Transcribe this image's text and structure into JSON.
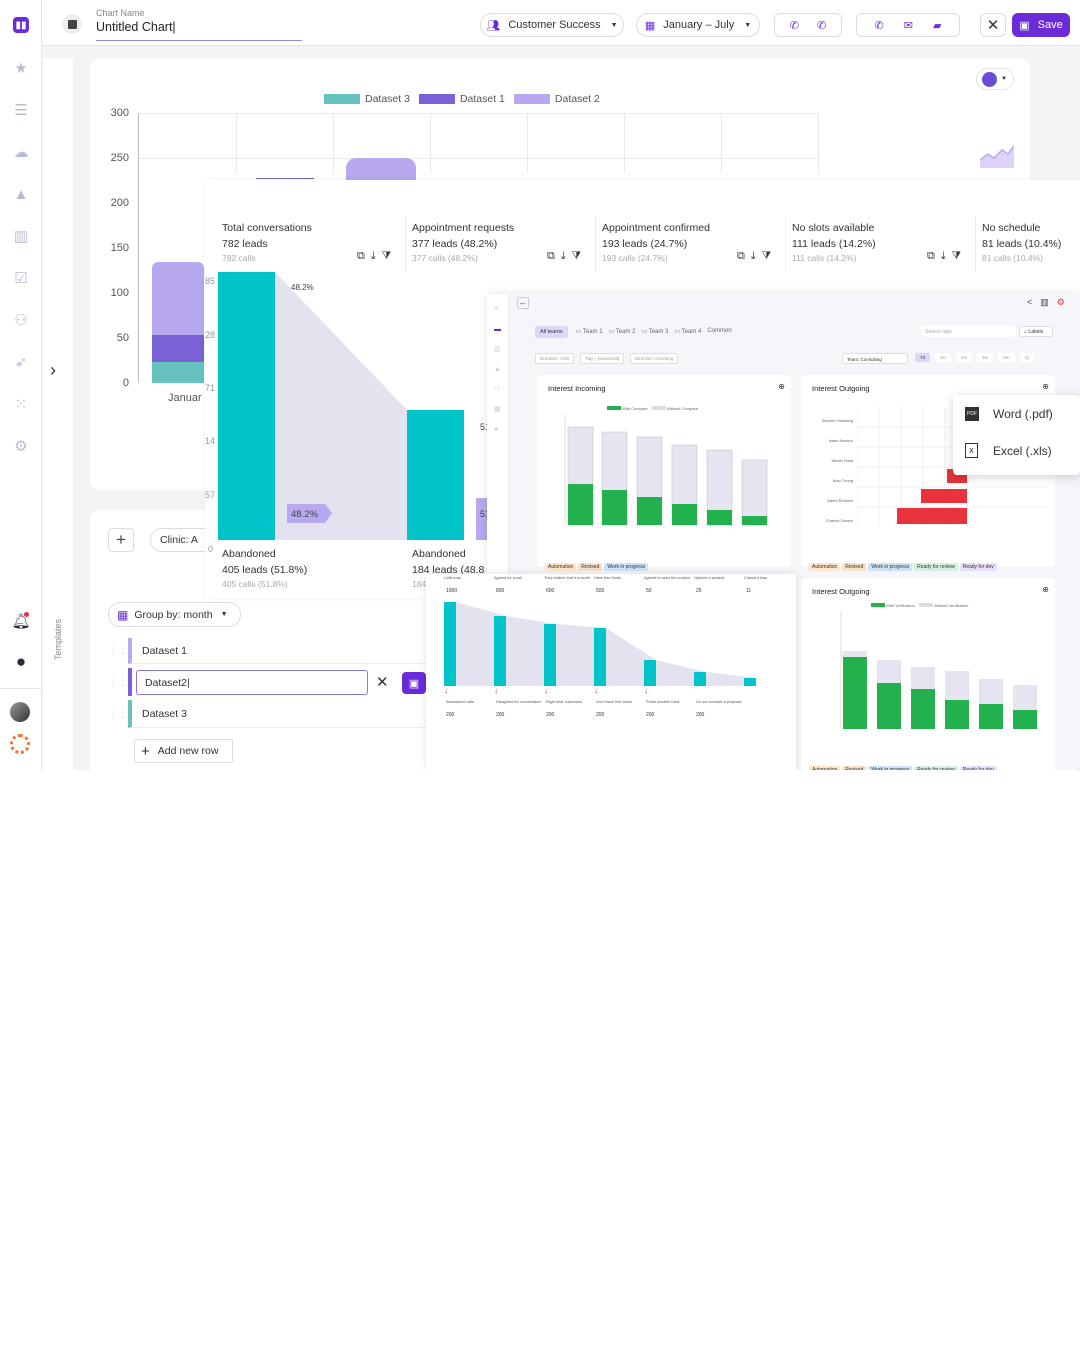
{
  "header": {
    "chart_name_label": "Chart Name",
    "chart_name_value": "Untitled Chart|",
    "team_select": "Customer Success",
    "date_range": "January – July",
    "save_label": "Save"
  },
  "colors": {
    "accent": "#6c2bd9",
    "teal": "#00c4c9",
    "dataset1": "#7a62d6",
    "dataset2": "#b7a8f0",
    "dataset3": "#66c2bd",
    "green": "#22b14c",
    "red": "#e8323c"
  },
  "bar_chart": {
    "legend": [
      "Dataset 3",
      "Dataset 1",
      "Dataset 2"
    ],
    "y_ticks": [
      "300",
      "250",
      "200",
      "150",
      "100",
      "50",
      "0"
    ],
    "x_label": "Januar"
  },
  "funnel": {
    "stats": [
      {
        "title": "Total conversations",
        "value": "782 leads",
        "sub": "782 calls"
      },
      {
        "title": "Appointment requests",
        "value": "377 leads (48.2%)",
        "sub": "377 calls (48.2%)"
      },
      {
        "title": "Appointment confirmed",
        "value": "193 leads (24.7%)",
        "sub": "193 calls (24.7%)"
      },
      {
        "title": "No slots available",
        "value": "111 leads (14.2%)",
        "sub": "111 calls (14.2%)"
      },
      {
        "title": "No schedule",
        "value": "81 leads (10.4%)",
        "sub": "81 calls (10.4%)"
      }
    ],
    "pct_top": "48.2%",
    "pct_bottom": "48.2%",
    "partial_label": "51",
    "side_ticks": [
      "85",
      "28",
      "71",
      "14",
      "57",
      "0"
    ],
    "abandoned": [
      {
        "title": "Abandoned",
        "value": "405 leads (51.8%)",
        "sub": "405 calls (51.8%)"
      },
      {
        "title": "Abandoned",
        "value": "184 leads (48.8",
        "sub": "184"
      }
    ]
  },
  "controls": {
    "clinic": "Clinic: A",
    "group_by": "Group by: month",
    "rows": [
      "Dataset 1",
      "Dataset2|",
      "Dataset 3"
    ],
    "add_row": "Add new row"
  },
  "export_menu": {
    "word": "Word (.pdf)",
    "excel": "Excel (.xls)",
    "pdf_badge": "PDF"
  },
  "dashboard": {
    "tabs": [
      "All teams",
      "Team 1",
      "Team 2",
      "Team 3",
      "Team 4",
      "Common"
    ],
    "search_placeholder": "Search tags",
    "labels_btn": "Labels",
    "filters": [
      "Duration: >20s",
      "Tag = [voicemail]",
      "Direction: incoming"
    ],
    "team_filter": "Team: Consulting",
    "ranges": [
      "7d",
      "2w",
      "1m",
      "3m",
      "6m",
      "1y"
    ],
    "panel1_title": "Interest Incoming",
    "panel2_title": "Interest Outgoing",
    "panel3_title": "Interest Outgoing",
    "legend_with_compare": "With Compare",
    "legend_without_compare": "Without Compare",
    "legend_with_verification": "With Verification",
    "legend_without_verification": "Without Verification",
    "names": [
      "Nikola Tesla",
      "Alan Turing",
      "Stephen Hawking",
      "Charles Darwin",
      "Albert Einstein",
      "Isaac Newton"
    ],
    "tags": [
      "Automation",
      "Revised",
      "Work in progress",
      "Ready for review",
      "Ready for dev"
    ],
    "funnel_cols": [
      "Calls total",
      "Agreed for a call",
      "They believe that it is worth",
      "Have free funds",
      "Agreed to open the product",
      "Opened a product",
      "Closed a loan"
    ],
    "funnel_vals": [
      "1000",
      "800",
      "600",
      "500",
      "50",
      "25",
      "11"
    ],
    "funnel_bottom": [
      "Abandoned calls",
      "Disagreed for conversation",
      "Right hear customers",
      "Don't have free funds",
      "Prefer another bank",
      "Do not consider a proposal"
    ],
    "funnel_bottom_vals": [
      "200",
      "200",
      "200",
      "200",
      "200",
      "200"
    ]
  }
}
